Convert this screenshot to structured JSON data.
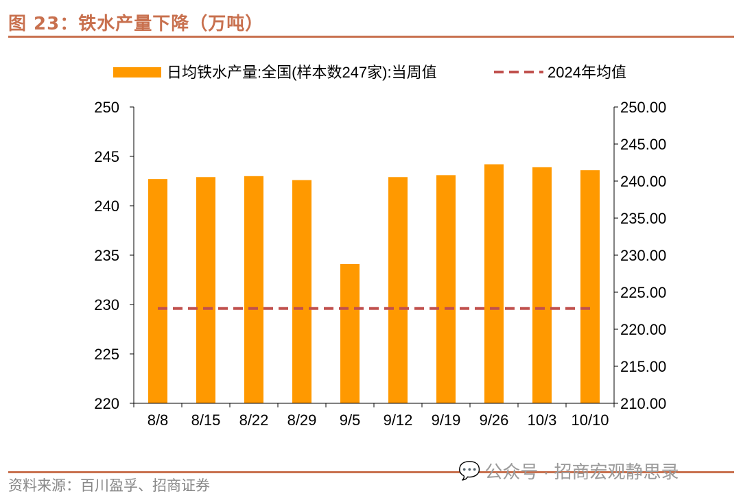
{
  "title": "图 23：铁水产量下降（万吨）",
  "source": "资料来源：百川盈孚、招商证券",
  "watermark": "公众号 · 招商宏观静思录",
  "colors": {
    "bar": "#FF9900",
    "line": "#C0504D",
    "accent": "#C8704E"
  },
  "chart_data": {
    "type": "bar",
    "categories": [
      "8/8",
      "8/15",
      "8/22",
      "8/29",
      "9/5",
      "9/12",
      "9/19",
      "9/26",
      "10/3",
      "10/10"
    ],
    "series": [
      {
        "name": "日均铁水产量:全国(样本数247家):当周值",
        "type": "bar",
        "axis": "left",
        "values": [
          242.7,
          242.9,
          243.0,
          242.6,
          234.1,
          242.9,
          243.1,
          244.2,
          243.9,
          243.6
        ]
      },
      {
        "name": "2024年均值",
        "type": "line-dashed",
        "axis": "left",
        "values": [
          229.6,
          229.6,
          229.6,
          229.6,
          229.6,
          229.6,
          229.6,
          229.6,
          229.6,
          229.6
        ]
      }
    ],
    "left_axis": {
      "ylim": [
        220,
        250
      ],
      "ticks": [
        "220",
        "225",
        "230",
        "235",
        "240",
        "245",
        "250"
      ]
    },
    "right_axis": {
      "ylim": [
        210,
        250
      ],
      "ticks": [
        "210.00",
        "215.00",
        "220.00",
        "225.00",
        "230.00",
        "235.00",
        "240.00",
        "245.00",
        "250.00"
      ]
    },
    "legend_placement": "top",
    "grid": false
  }
}
